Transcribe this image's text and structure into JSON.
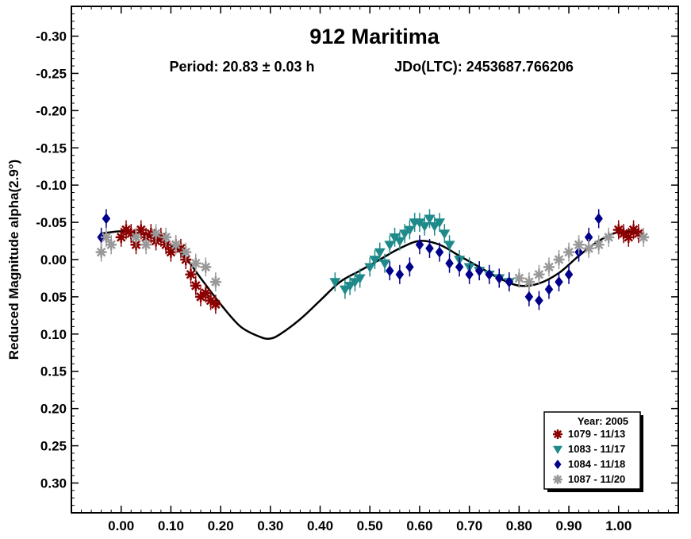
{
  "chart_data": {
    "type": "scatter",
    "title": "912 Maritima",
    "subtitle_period": "Period: 20.83 ± 0.03 h",
    "subtitle_epoch": "JDo(LTC): 2453687.766206",
    "ylabel": "Reduced Magnitude alpha(2.9°)",
    "xlabel": "",
    "xlim": [
      -0.1,
      1.12
    ],
    "ylim": [
      -0.34,
      0.34
    ],
    "y_inverted": true,
    "grid": false,
    "x_ticks": [
      0.0,
      0.1,
      0.2,
      0.3,
      0.4,
      0.5,
      0.6,
      0.7,
      0.8,
      0.9,
      1.0
    ],
    "x_tick_labels": [
      "0.00",
      "0.10",
      "0.20",
      "0.30",
      "0.40",
      "0.50",
      "0.60",
      "0.70",
      "0.80",
      "0.90",
      "1.00"
    ],
    "y_ticks": [
      -0.3,
      -0.25,
      -0.2,
      -0.15,
      -0.1,
      -0.05,
      0.0,
      0.05,
      0.1,
      0.15,
      0.2,
      0.25,
      0.3
    ],
    "y_tick_labels": [
      "-0.30",
      "-0.25",
      "-0.20",
      "-0.15",
      "-0.10",
      "-0.05",
      "0.00",
      "0.05",
      "0.10",
      "0.15",
      "0.20",
      "0.25",
      "0.30"
    ],
    "legend_position": "bottom-right",
    "legend_title": "Year: 2005",
    "fit_curve": {
      "x": [
        -0.04,
        0.0,
        0.04,
        0.08,
        0.12,
        0.16,
        0.2,
        0.24,
        0.28,
        0.3,
        0.32,
        0.36,
        0.4,
        0.44,
        0.48,
        0.52,
        0.56,
        0.6,
        0.64,
        0.68,
        0.72,
        0.76,
        0.8,
        0.84,
        0.88,
        0.92,
        0.96,
        1.0,
        1.04,
        1.05
      ],
      "y": [
        -0.035,
        -0.038,
        -0.035,
        -0.025,
        -0.01,
        0.025,
        0.06,
        0.09,
        0.104,
        0.106,
        0.1,
        0.08,
        0.055,
        0.03,
        0.015,
        0.0,
        -0.015,
        -0.025,
        -0.02,
        -0.005,
        0.01,
        0.025,
        0.035,
        0.032,
        0.018,
        -0.005,
        -0.025,
        -0.037,
        -0.036,
        -0.034
      ]
    },
    "series": [
      {
        "name": "1079 - 11/13",
        "color": "#8b0000",
        "marker": "asterisk",
        "x": [
          0.0,
          0.01,
          0.02,
          0.03,
          0.04,
          0.05,
          0.06,
          0.07,
          0.08,
          0.09,
          0.1,
          0.11,
          0.12,
          0.13,
          0.14,
          0.15,
          0.16,
          0.17,
          0.18,
          0.19,
          1.0,
          1.01,
          1.02,
          1.03,
          1.04
        ],
        "y": [
          -0.03,
          -0.04,
          -0.035,
          -0.02,
          -0.04,
          -0.03,
          -0.035,
          -0.025,
          -0.03,
          -0.02,
          -0.01,
          -0.02,
          -0.015,
          0.0,
          0.02,
          0.035,
          0.05,
          0.045,
          0.055,
          0.06,
          -0.04,
          -0.035,
          -0.03,
          -0.04,
          -0.035
        ]
      },
      {
        "name": "1083 - 11/17",
        "color": "#1f8a8a",
        "marker": "triangle-down",
        "x": [
          0.43,
          0.45,
          0.46,
          0.47,
          0.48,
          0.5,
          0.51,
          0.52,
          0.53,
          0.54,
          0.55,
          0.56,
          0.57,
          0.58,
          0.59,
          0.6,
          0.61,
          0.62,
          0.63,
          0.64,
          0.65,
          0.66,
          0.68,
          0.7,
          0.72,
          0.74,
          0.76,
          0.78
        ],
        "y": [
          0.03,
          0.04,
          0.035,
          0.03,
          0.025,
          0.01,
          0.0,
          -0.01,
          0.005,
          -0.02,
          -0.03,
          -0.025,
          -0.035,
          -0.04,
          -0.05,
          -0.05,
          -0.045,
          -0.055,
          -0.045,
          -0.05,
          -0.035,
          -0.02,
          0.0,
          0.01,
          0.015,
          0.02,
          0.025,
          0.03
        ]
      },
      {
        "name": "1084 - 11/18",
        "color": "#00008b",
        "marker": "diamond",
        "x": [
          -0.04,
          -0.03,
          0.54,
          0.56,
          0.58,
          0.6,
          0.62,
          0.64,
          0.66,
          0.68,
          0.7,
          0.72,
          0.74,
          0.76,
          0.78,
          0.82,
          0.84,
          0.86,
          0.88,
          0.9,
          0.92,
          0.94,
          0.96
        ],
        "y": [
          -0.03,
          -0.055,
          0.015,
          0.02,
          0.01,
          -0.02,
          -0.015,
          -0.01,
          0.005,
          0.01,
          0.02,
          0.015,
          0.02,
          0.025,
          0.03,
          0.05,
          0.055,
          0.04,
          0.03,
          0.02,
          -0.01,
          -0.03,
          -0.055
        ]
      },
      {
        "name": "1087 - 11/20",
        "color": "#999999",
        "marker": "asterisk",
        "x": [
          -0.04,
          -0.03,
          -0.02,
          0.03,
          0.05,
          0.07,
          0.09,
          0.11,
          0.13,
          0.15,
          0.17,
          0.19,
          0.8,
          0.82,
          0.84,
          0.86,
          0.88,
          0.9,
          0.92,
          0.94,
          0.96,
          0.98,
          1.05
        ],
        "y": [
          -0.01,
          -0.03,
          -0.02,
          -0.03,
          -0.02,
          -0.035,
          -0.03,
          -0.02,
          -0.01,
          0.005,
          0.01,
          0.03,
          0.025,
          0.03,
          0.02,
          0.01,
          0.0,
          -0.01,
          -0.02,
          -0.015,
          -0.02,
          -0.03,
          -0.03
        ]
      }
    ]
  }
}
